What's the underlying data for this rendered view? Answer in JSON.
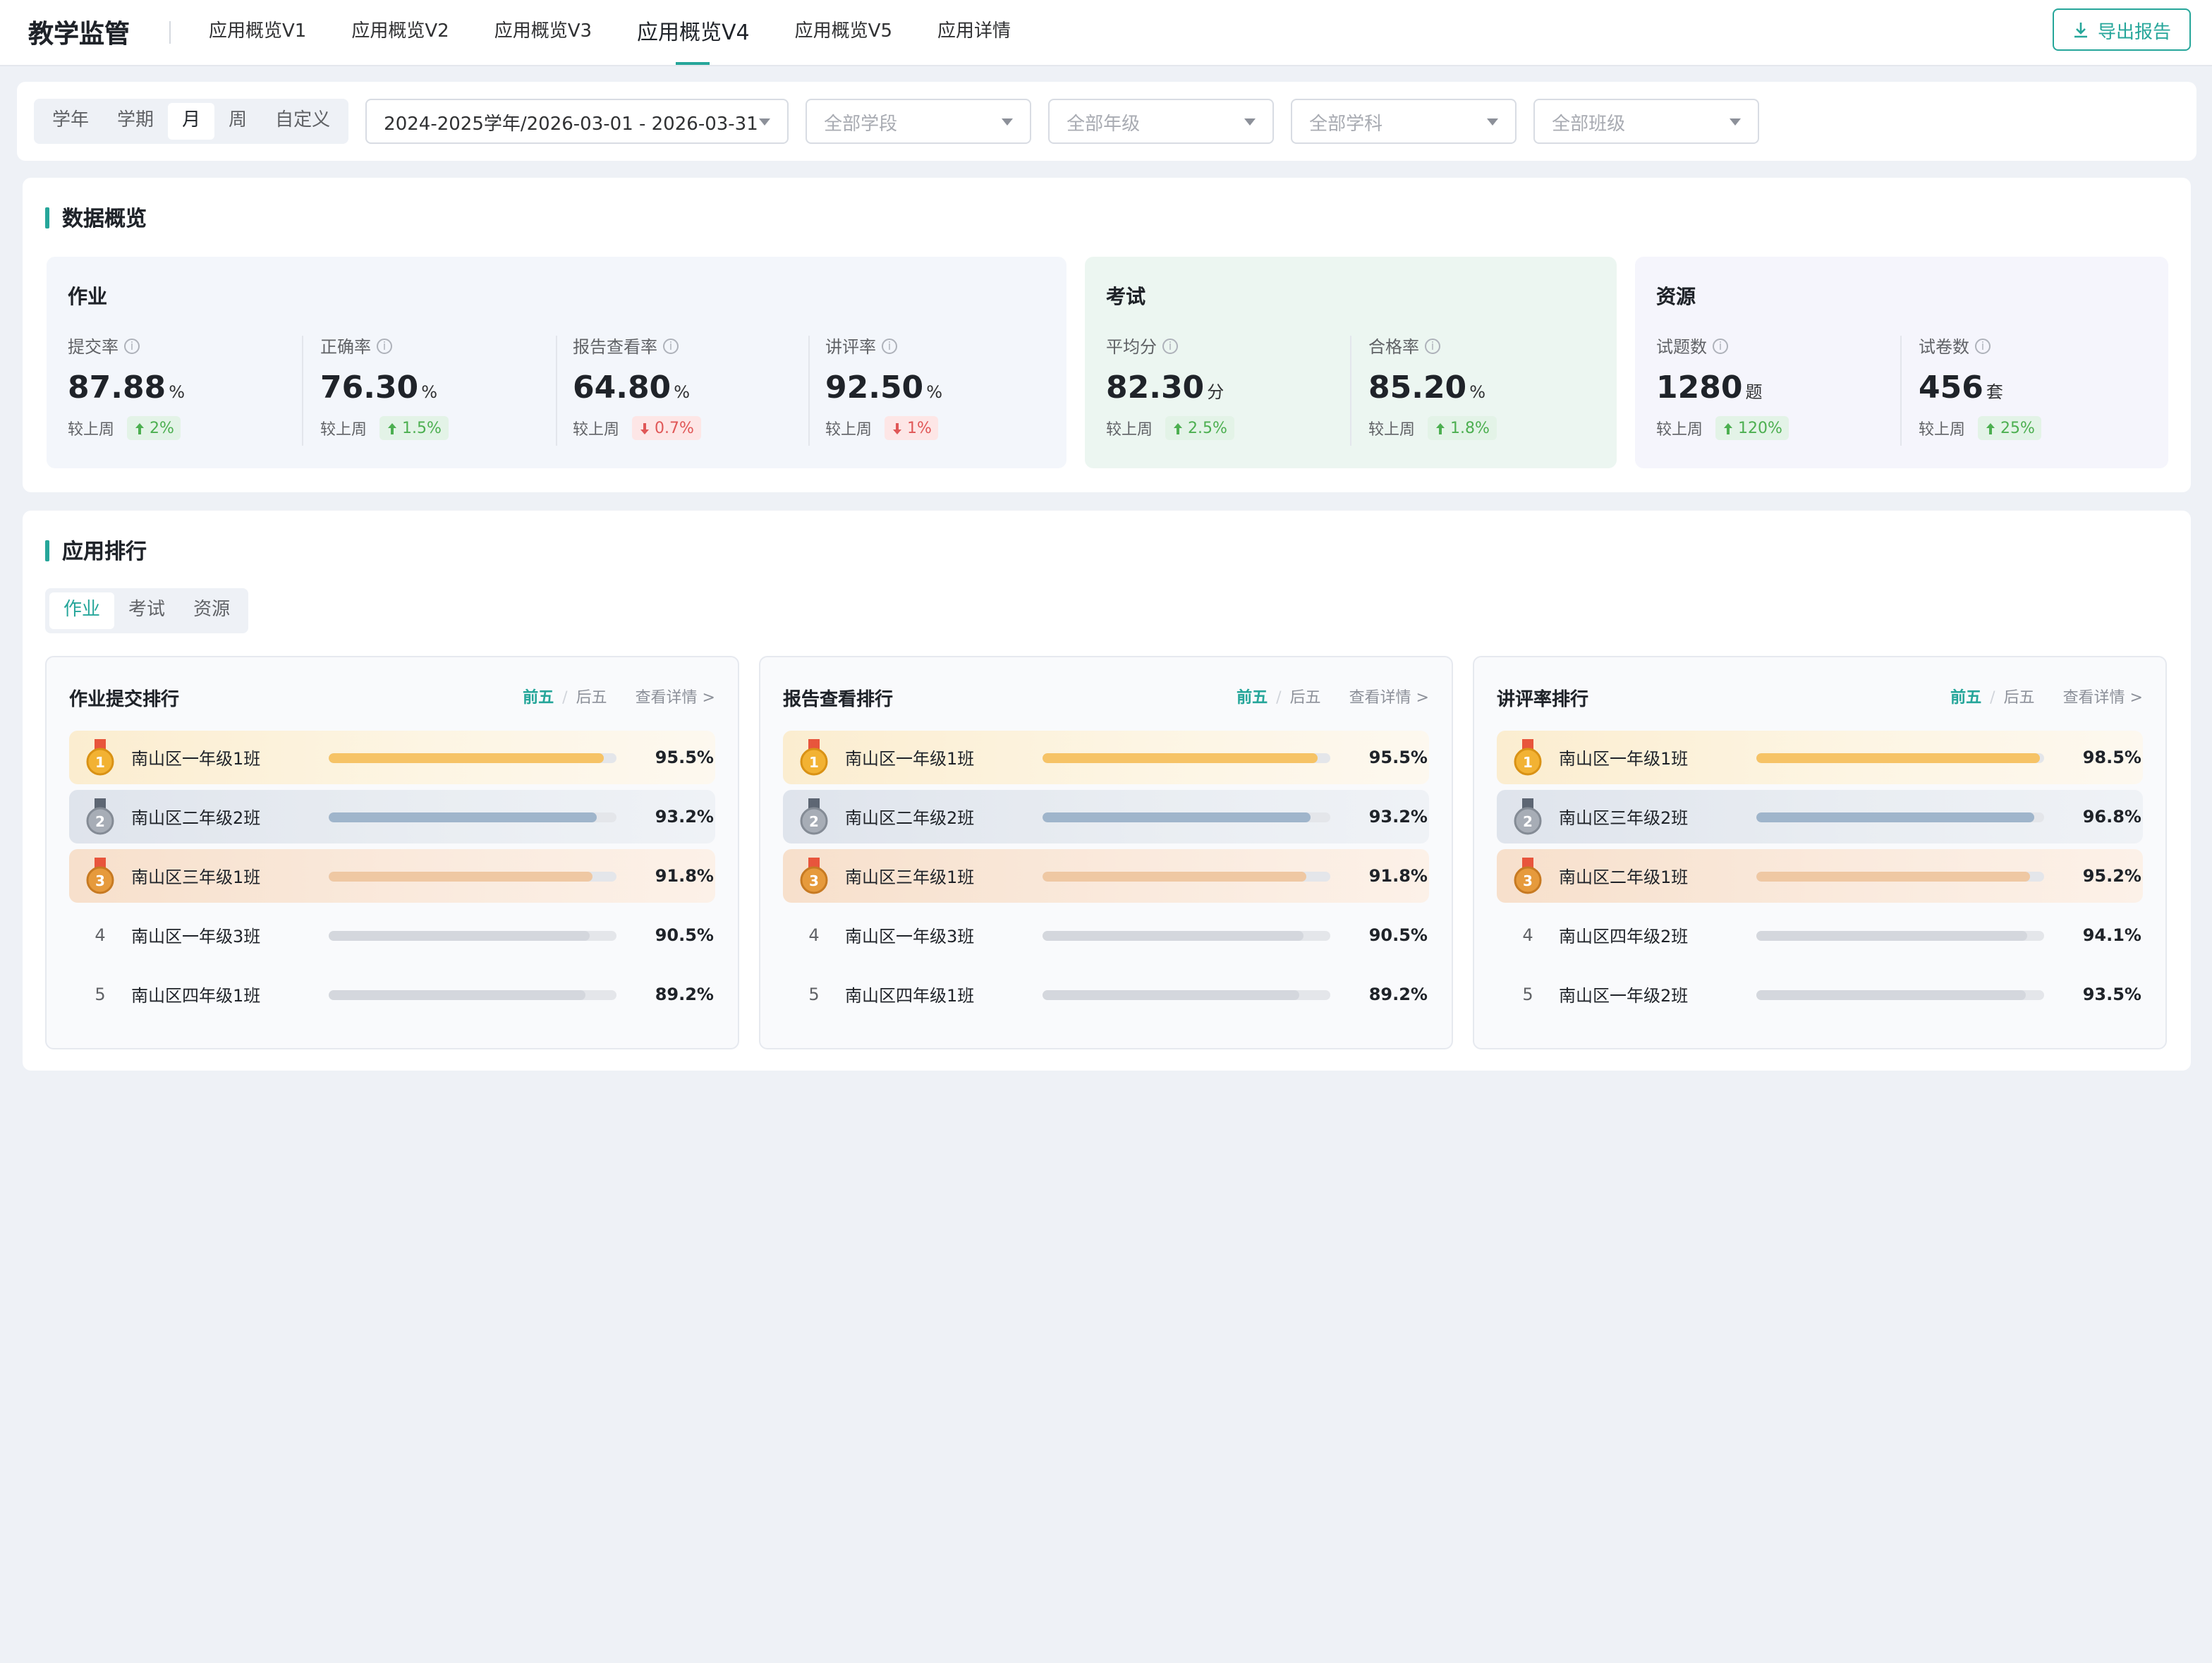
{
  "header": {
    "brand": "教学监管",
    "nav": [
      "应用概览V1",
      "应用概览V2",
      "应用概览V3",
      "应用概览V4",
      "应用概览V5",
      "应用详情"
    ],
    "active_nav": 3,
    "export_label": "导出报告"
  },
  "filters": {
    "periods": [
      "学年",
      "学期",
      "月",
      "周",
      "自定义"
    ],
    "active_period": 2,
    "date_range": "2024-2025学年/2026-03-01 - 2026-03-31",
    "stage": "全部学段",
    "grade": "全部年级",
    "subject": "全部学科",
    "class": "全部班级"
  },
  "overview": {
    "title": "数据概览",
    "compare_label": "较上周",
    "homework": {
      "title": "作业",
      "metrics": [
        {
          "label": "提交率",
          "value": "87.88",
          "unit": "%",
          "change": "2%",
          "trend": "up"
        },
        {
          "label": "正确率",
          "value": "76.30",
          "unit": "%",
          "change": "1.5%",
          "trend": "up"
        },
        {
          "label": "报告查看率",
          "value": "64.80",
          "unit": "%",
          "change": "0.7%",
          "trend": "down"
        },
        {
          "label": "讲评率",
          "value": "92.50",
          "unit": "%",
          "change": "1%",
          "trend": "down"
        }
      ]
    },
    "exam": {
      "title": "考试",
      "metrics": [
        {
          "label": "平均分",
          "value": "82.30",
          "unit": "分",
          "change": "2.5%",
          "trend": "up"
        },
        {
          "label": "合格率",
          "value": "85.20",
          "unit": "%",
          "change": "1.8%",
          "trend": "up"
        }
      ]
    },
    "resource": {
      "title": "资源",
      "metrics": [
        {
          "label": "试题数",
          "value": "1280",
          "unit": "题",
          "change": "120%",
          "trend": "up"
        },
        {
          "label": "试卷数",
          "value": "456",
          "unit": "套",
          "change": "25%",
          "trend": "up"
        }
      ]
    }
  },
  "ranking": {
    "title": "应用排行",
    "tabs": [
      "作业",
      "考试",
      "资源"
    ],
    "active_tab": 0,
    "top_label": "前五",
    "bottom_label": "后五",
    "more_label": "查看详情 >",
    "colors": {
      "gold": "#f6c366",
      "silver": "#9fb5cb",
      "bronze": "#efc8a3",
      "other": "#d4d7dd",
      "accent": "#26a69a"
    },
    "cards": [
      {
        "title": "作业提交排行",
        "rows": [
          {
            "rank": "1",
            "name": "南山区一年级1班",
            "value": "95.5%",
            "pct": 95.5
          },
          {
            "rank": "2",
            "name": "南山区二年级2班",
            "value": "93.2%",
            "pct": 93.2
          },
          {
            "rank": "3",
            "name": "南山区三年级1班",
            "value": "91.8%",
            "pct": 91.8
          },
          {
            "rank": "4",
            "name": "南山区一年级3班",
            "value": "90.5%",
            "pct": 90.5
          },
          {
            "rank": "5",
            "name": "南山区四年级1班",
            "value": "89.2%",
            "pct": 89.2
          }
        ]
      },
      {
        "title": "报告查看排行",
        "rows": [
          {
            "rank": "1",
            "name": "南山区一年级1班",
            "value": "95.5%",
            "pct": 95.5
          },
          {
            "rank": "2",
            "name": "南山区二年级2班",
            "value": "93.2%",
            "pct": 93.2
          },
          {
            "rank": "3",
            "name": "南山区三年级1班",
            "value": "91.8%",
            "pct": 91.8
          },
          {
            "rank": "4",
            "name": "南山区一年级3班",
            "value": "90.5%",
            "pct": 90.5
          },
          {
            "rank": "5",
            "name": "南山区四年级1班",
            "value": "89.2%",
            "pct": 89.2
          }
        ]
      },
      {
        "title": "讲评率排行",
        "rows": [
          {
            "rank": "1",
            "name": "南山区一年级1班",
            "value": "98.5%",
            "pct": 98.5
          },
          {
            "rank": "2",
            "name": "南山区三年级2班",
            "value": "96.8%",
            "pct": 96.8
          },
          {
            "rank": "3",
            "name": "南山区二年级1班",
            "value": "95.2%",
            "pct": 95.2
          },
          {
            "rank": "4",
            "name": "南山区四年级2班",
            "value": "94.1%",
            "pct": 94.1
          },
          {
            "rank": "5",
            "name": "南山区一年级2班",
            "value": "93.5%",
            "pct": 93.5
          }
        ]
      }
    ]
  }
}
